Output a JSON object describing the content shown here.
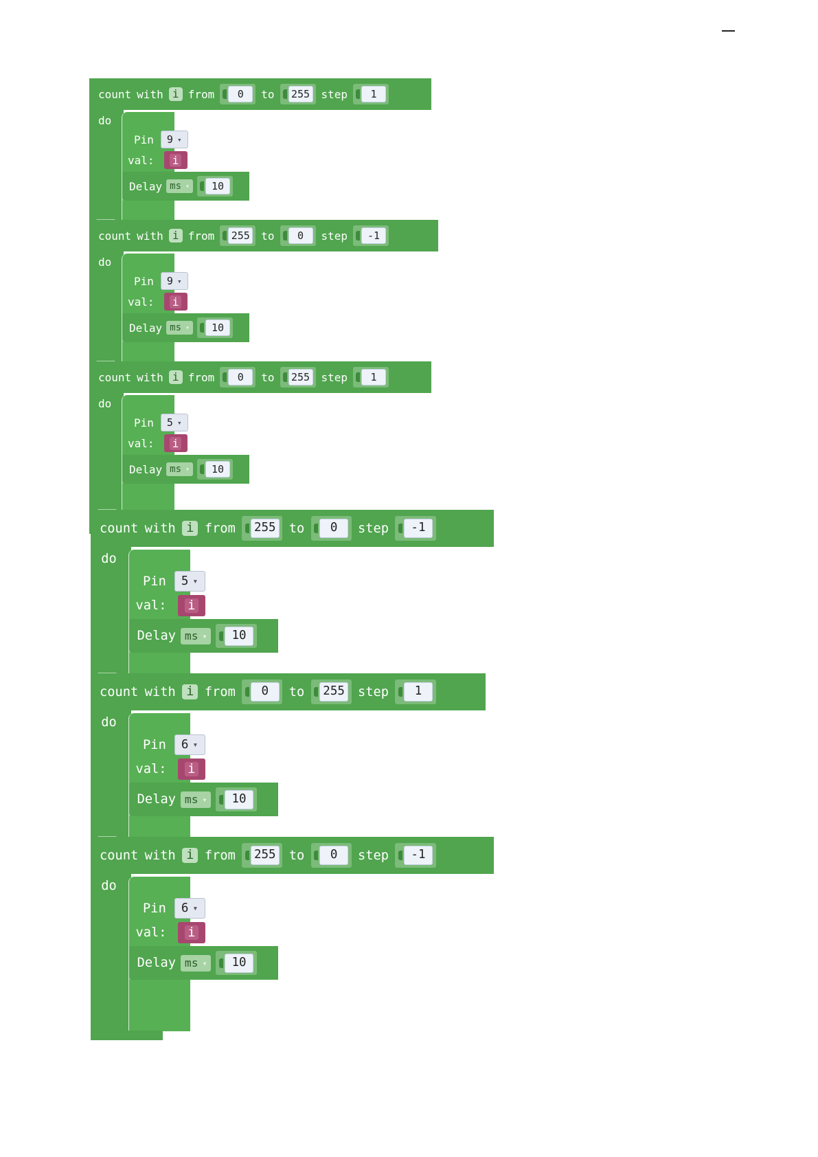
{
  "loops": [
    {
      "count": "count",
      "with": "with",
      "var": "i",
      "from_lbl": "from",
      "from": "0",
      "to_lbl": "to",
      "to": "255",
      "step_lbl": "step",
      "step": "1",
      "do": "do",
      "pin_lbl": "Pin",
      "pin": "9",
      "val_lbl": "val:",
      "val_var": "i",
      "delay_lbl": "Delay",
      "unit": "ms",
      "delay": "10"
    },
    {
      "count": "count",
      "with": "with",
      "var": "i",
      "from_lbl": "from",
      "from": "255",
      "to_lbl": "to",
      "to": "0",
      "step_lbl": "step",
      "step": "-1",
      "do": "do",
      "pin_lbl": "Pin",
      "pin": "9",
      "val_lbl": "val:",
      "val_var": "i",
      "delay_lbl": "Delay",
      "unit": "ms",
      "delay": "10"
    },
    {
      "count": "count",
      "with": "with",
      "var": "i",
      "from_lbl": "from",
      "from": "0",
      "to_lbl": "to",
      "to": "255",
      "step_lbl": "step",
      "step": "1",
      "do": "do",
      "pin_lbl": "Pin",
      "pin": "5",
      "val_lbl": "val:",
      "val_var": "i",
      "delay_lbl": "Delay",
      "unit": "ms",
      "delay": "10"
    },
    {
      "count": "count",
      "with": "with",
      "var": "i",
      "from_lbl": "from",
      "from": "255",
      "to_lbl": "to",
      "to": "0",
      "step_lbl": "step",
      "step": "-1",
      "do": "do",
      "pin_lbl": "Pin",
      "pin": "5",
      "val_lbl": "val:",
      "val_var": "i",
      "delay_lbl": "Delay",
      "unit": "ms",
      "delay": "10"
    },
    {
      "count": "count",
      "with": "with",
      "var": "i",
      "from_lbl": "from",
      "from": "0",
      "to_lbl": "to",
      "to": "255",
      "step_lbl": "step",
      "step": "1",
      "do": "do",
      "pin_lbl": "Pin",
      "pin": "6",
      "val_lbl": "val:",
      "val_var": "i",
      "delay_lbl": "Delay",
      "unit": "ms",
      "delay": "10"
    },
    {
      "count": "count",
      "with": "with",
      "var": "i",
      "from_lbl": "from",
      "from": "255",
      "to_lbl": "to",
      "to": "0",
      "step_lbl": "step",
      "step": "-1",
      "do": "do",
      "pin_lbl": "Pin",
      "pin": "6",
      "val_lbl": "val:",
      "val_var": "i",
      "delay_lbl": "Delay",
      "unit": "ms",
      "delay": "10"
    }
  ],
  "icons": {
    "dropdown": "chevron-down-icon"
  },
  "colors": {
    "loop_block": "#50a54e",
    "variable_block": "#a7476f",
    "number_field": "#eef3fa"
  }
}
